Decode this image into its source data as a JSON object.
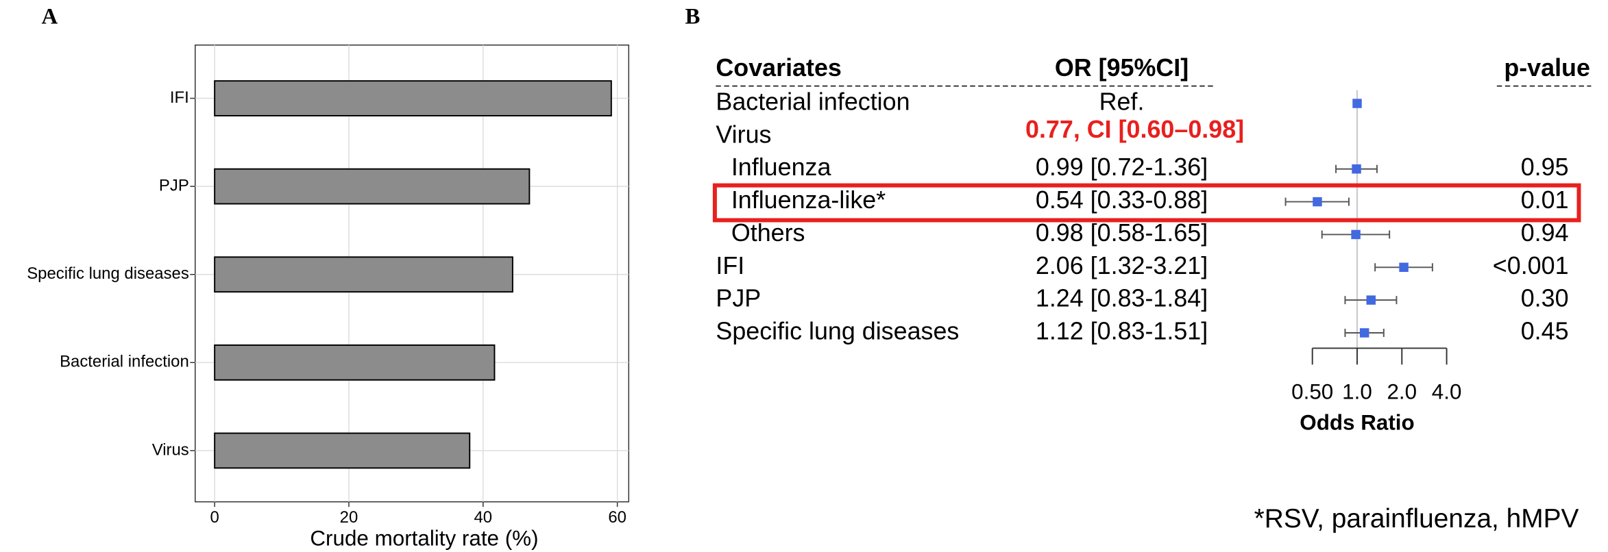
{
  "chart_data": [
    {
      "type": "bar",
      "panel_label": "A",
      "categories": [
        "IFI",
        "PJP",
        "Specific lung diseases",
        "Bacterial infection",
        "Virus"
      ],
      "values": [
        59.1,
        46.9,
        44.4,
        41.7,
        38.0
      ],
      "color": "#8c8c8c",
      "xlim": [
        -2.9,
        61.7
      ],
      "xticks": [
        0,
        20,
        40,
        60
      ],
      "xlabel": "Crude mortality rate (%)",
      "grid": true
    },
    {
      "type": "forest",
      "panel_label": "B",
      "columns": {
        "covariate": "Covariates",
        "or_ci": "OR [95%CI]",
        "p_value": "p-value"
      },
      "rows": [
        {
          "label": "Bacterial infection",
          "or_ci": "Ref.",
          "or": 1
        },
        {
          "label": "Virus",
          "annotation": "0.77, CI [0.60–0.98]"
        },
        {
          "label": "Influenza",
          "indent": true,
          "or_ci": "0.99 [0.72-1.36]",
          "p_value": "0.95",
          "or": 0.99,
          "ci": [
            0.72,
            1.36
          ]
        },
        {
          "label": "Influenza-like*",
          "indent": true,
          "highlight": true,
          "or_ci": "0.54 [0.33-0.88]",
          "p_value": "0.01",
          "or": 0.54,
          "ci": [
            0.33,
            0.88
          ]
        },
        {
          "label": "Others",
          "indent": true,
          "or_ci": "0.98 [0.58-1.65]",
          "p_value": "0.94",
          "or": 0.98,
          "ci": [
            0.58,
            1.65
          ]
        },
        {
          "label": "IFI",
          "or_ci": "2.06 [1.32-3.21]",
          "p_value": "<0.001",
          "or": 2.06,
          "ci": [
            1.32,
            3.21
          ]
        },
        {
          "label": "PJP",
          "or_ci": "1.24 [0.83-1.84]",
          "p_value": "0.30",
          "or": 1.24,
          "ci": [
            0.83,
            1.84
          ]
        },
        {
          "label": "Specific lung diseases",
          "or_ci": "1.12 [0.83-1.51]",
          "p_value": "0.45",
          "or": 1.12,
          "ci": [
            0.83,
            1.51
          ]
        }
      ],
      "color": "#4169e1",
      "highlight_color": "#e8201e",
      "log": true,
      "xlim": [
        0.5,
        4
      ],
      "xticks": [
        {
          "value": 0.5,
          "label": "0.50"
        },
        {
          "value": 1,
          "label": "1.0"
        },
        {
          "value": 2,
          "label": "2.0"
        },
        {
          "value": 4,
          "label": "4.0"
        }
      ],
      "xlabel": "Odds Ratio",
      "footnote": "*RSV, parainfluenza, hMPV"
    }
  ]
}
